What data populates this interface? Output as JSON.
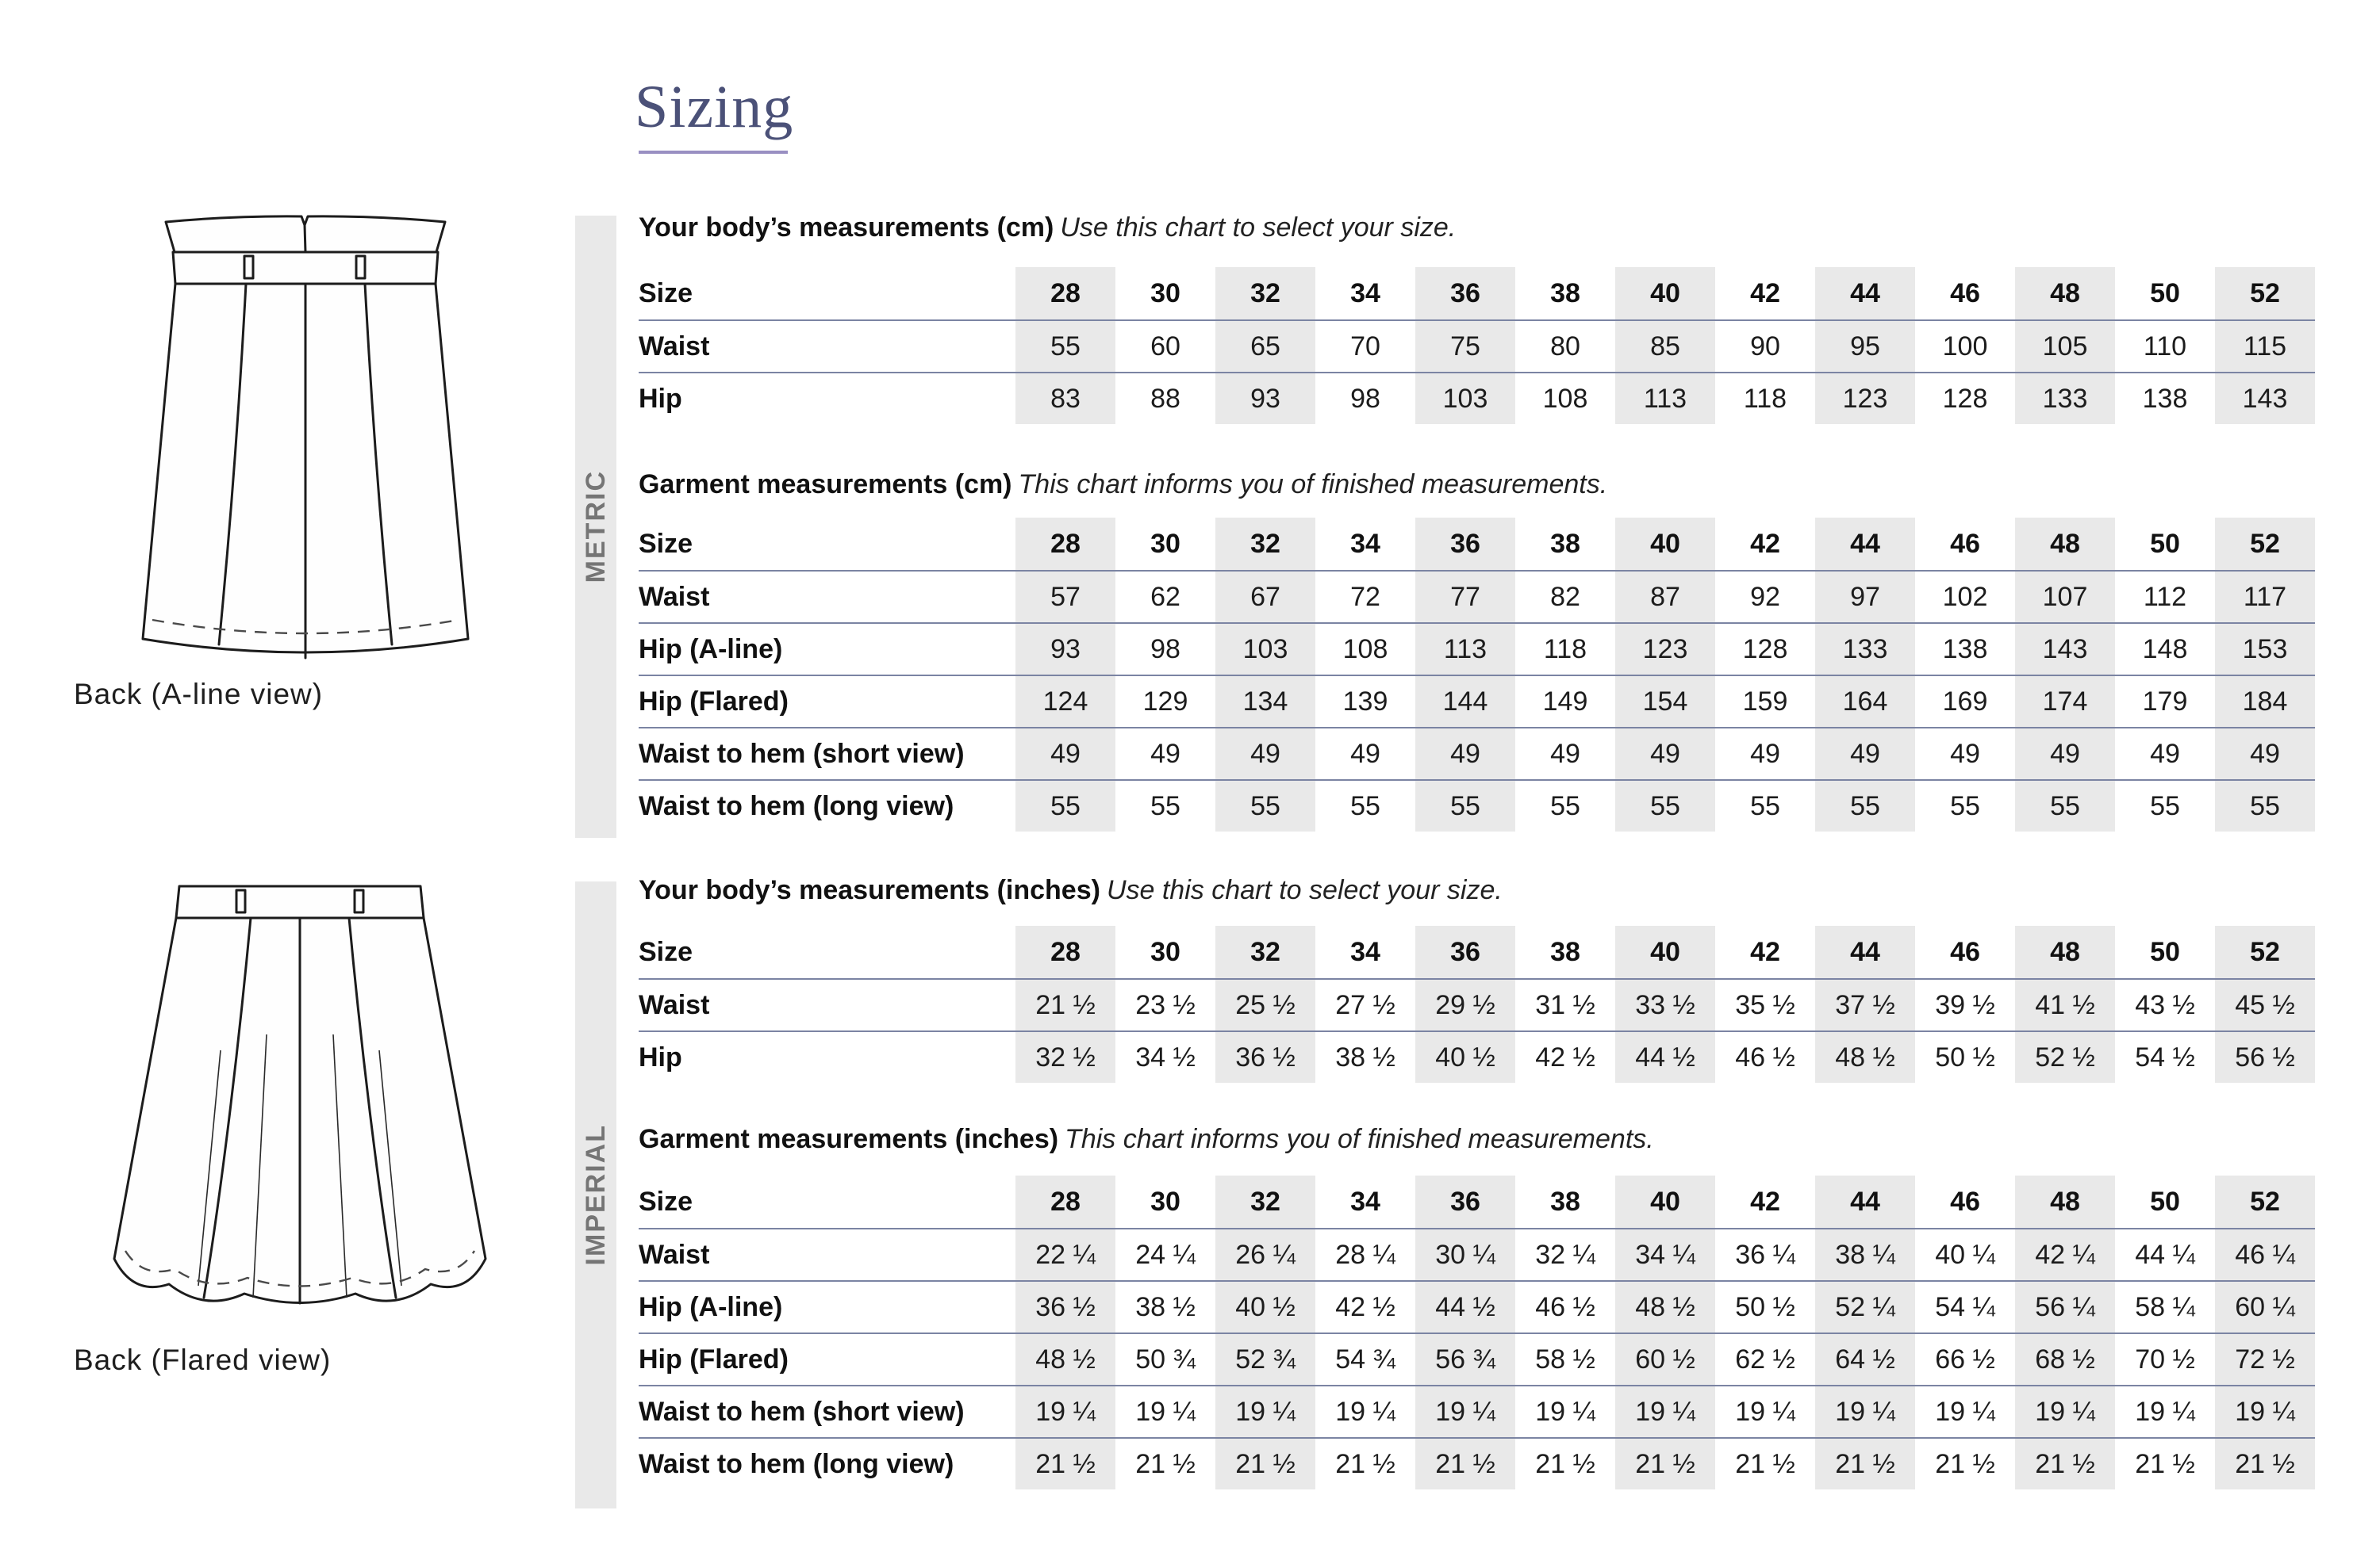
{
  "page": {
    "title": "Sizing"
  },
  "colors": {
    "title": "#4b5178",
    "title_underline": "#998fc2",
    "row_divider": "#7b84a3",
    "column_stripe": "#e9e9e9",
    "section_bar_bg": "#e9e9e9",
    "section_bar_text": "#757575"
  },
  "illustrations": {
    "aline": {
      "caption": "Back (A-line view)"
    },
    "flared": {
      "caption": "Back (Flared view)"
    }
  },
  "sections": {
    "metric": {
      "label": "METRIC",
      "body": {
        "heading_bold": "Your body’s measurements (cm)",
        "heading_italic": "Use this chart to select your size.",
        "rows": [
          {
            "label": "Size",
            "bold": true,
            "values": [
              "28",
              "30",
              "32",
              "34",
              "36",
              "38",
              "40",
              "42",
              "44",
              "46",
              "48",
              "50",
              "52"
            ]
          },
          {
            "label": "Waist",
            "values": [
              "55",
              "60",
              "65",
              "70",
              "75",
              "80",
              "85",
              "90",
              "95",
              "100",
              "105",
              "110",
              "115"
            ]
          },
          {
            "label": "Hip",
            "values": [
              "83",
              "88",
              "93",
              "98",
              "103",
              "108",
              "113",
              "118",
              "123",
              "128",
              "133",
              "138",
              "143"
            ]
          }
        ]
      },
      "garment": {
        "heading_bold": "Garment measurements (cm)",
        "heading_italic": "This chart informs you of finished measurements.",
        "rows": [
          {
            "label": "Size",
            "bold": true,
            "values": [
              "28",
              "30",
              "32",
              "34",
              "36",
              "38",
              "40",
              "42",
              "44",
              "46",
              "48",
              "50",
              "52"
            ]
          },
          {
            "label": "Waist",
            "values": [
              "57",
              "62",
              "67",
              "72",
              "77",
              "82",
              "87",
              "92",
              "97",
              "102",
              "107",
              "112",
              "117"
            ]
          },
          {
            "label": "Hip (A-line)",
            "values": [
              "93",
              "98",
              "103",
              "108",
              "113",
              "118",
              "123",
              "128",
              "133",
              "138",
              "143",
              "148",
              "153"
            ]
          },
          {
            "label": "Hip (Flared)",
            "values": [
              "124",
              "129",
              "134",
              "139",
              "144",
              "149",
              "154",
              "159",
              "164",
              "169",
              "174",
              "179",
              "184"
            ]
          },
          {
            "label": "Waist to hem (short view)",
            "values": [
              "49",
              "49",
              "49",
              "49",
              "49",
              "49",
              "49",
              "49",
              "49",
              "49",
              "49",
              "49",
              "49"
            ]
          },
          {
            "label": "Waist to hem (long view)",
            "values": [
              "55",
              "55",
              "55",
              "55",
              "55",
              "55",
              "55",
              "55",
              "55",
              "55",
              "55",
              "55",
              "55"
            ]
          }
        ]
      }
    },
    "imperial": {
      "label": "IMPERIAL",
      "body": {
        "heading_bold": "Your body’s measurements (inches)",
        "heading_italic": "Use this chart to select your size.",
        "rows": [
          {
            "label": "Size",
            "bold": true,
            "values": [
              "28",
              "30",
              "32",
              "34",
              "36",
              "38",
              "40",
              "42",
              "44",
              "46",
              "48",
              "50",
              "52"
            ]
          },
          {
            "label": "Waist",
            "values": [
              "21 ½",
              "23 ½",
              "25 ½",
              "27 ½",
              "29 ½",
              "31 ½",
              "33 ½",
              "35 ½",
              "37 ½",
              "39 ½",
              "41 ½",
              "43 ½",
              "45 ½"
            ]
          },
          {
            "label": "Hip",
            "values": [
              "32 ½",
              "34 ½",
              "36 ½",
              "38 ½",
              "40 ½",
              "42 ½",
              "44 ½",
              "46 ½",
              "48 ½",
              "50 ½",
              "52 ½",
              "54 ½",
              "56 ½"
            ]
          }
        ]
      },
      "garment": {
        "heading_bold": "Garment measurements (inches)",
        "heading_italic": "This chart informs you of finished measurements.",
        "rows": [
          {
            "label": "Size",
            "bold": true,
            "values": [
              "28",
              "30",
              "32",
              "34",
              "36",
              "38",
              "40",
              "42",
              "44",
              "46",
              "48",
              "50",
              "52"
            ]
          },
          {
            "label": "Waist",
            "values": [
              "22 ¼",
              "24 ¼",
              "26 ¼",
              "28 ¼",
              "30 ¼",
              "32 ¼",
              "34 ¼",
              "36 ¼",
              "38 ¼",
              "40 ¼",
              "42 ¼",
              "44 ¼",
              "46 ¼"
            ]
          },
          {
            "label": "Hip (A-line)",
            "values": [
              "36 ½",
              "38 ½",
              "40 ½",
              "42 ½",
              "44 ½",
              "46 ½",
              "48 ½",
              "50 ½",
              "52 ¼",
              "54 ¼",
              "56 ¼",
              "58 ¼",
              "60 ¼"
            ]
          },
          {
            "label": "Hip (Flared)",
            "values": [
              "48 ½",
              "50 ¾",
              "52 ¾",
              "54 ¾",
              "56 ¾",
              "58 ½",
              "60 ½",
              "62 ½",
              "64 ½",
              "66 ½",
              "68 ½",
              "70 ½",
              "72 ½"
            ]
          },
          {
            "label": "Waist to hem (short view)",
            "values": [
              "19 ¼",
              "19 ¼",
              "19 ¼",
              "19 ¼",
              "19 ¼",
              "19 ¼",
              "19 ¼",
              "19 ¼",
              "19 ¼",
              "19 ¼",
              "19 ¼",
              "19 ¼",
              "19 ¼"
            ]
          },
          {
            "label": "Waist to hem (long view)",
            "values": [
              "21 ½",
              "21 ½",
              "21 ½",
              "21 ½",
              "21 ½",
              "21 ½",
              "21 ½",
              "21 ½",
              "21 ½",
              "21 ½",
              "21 ½",
              "21 ½",
              "21 ½"
            ]
          }
        ]
      }
    }
  }
}
